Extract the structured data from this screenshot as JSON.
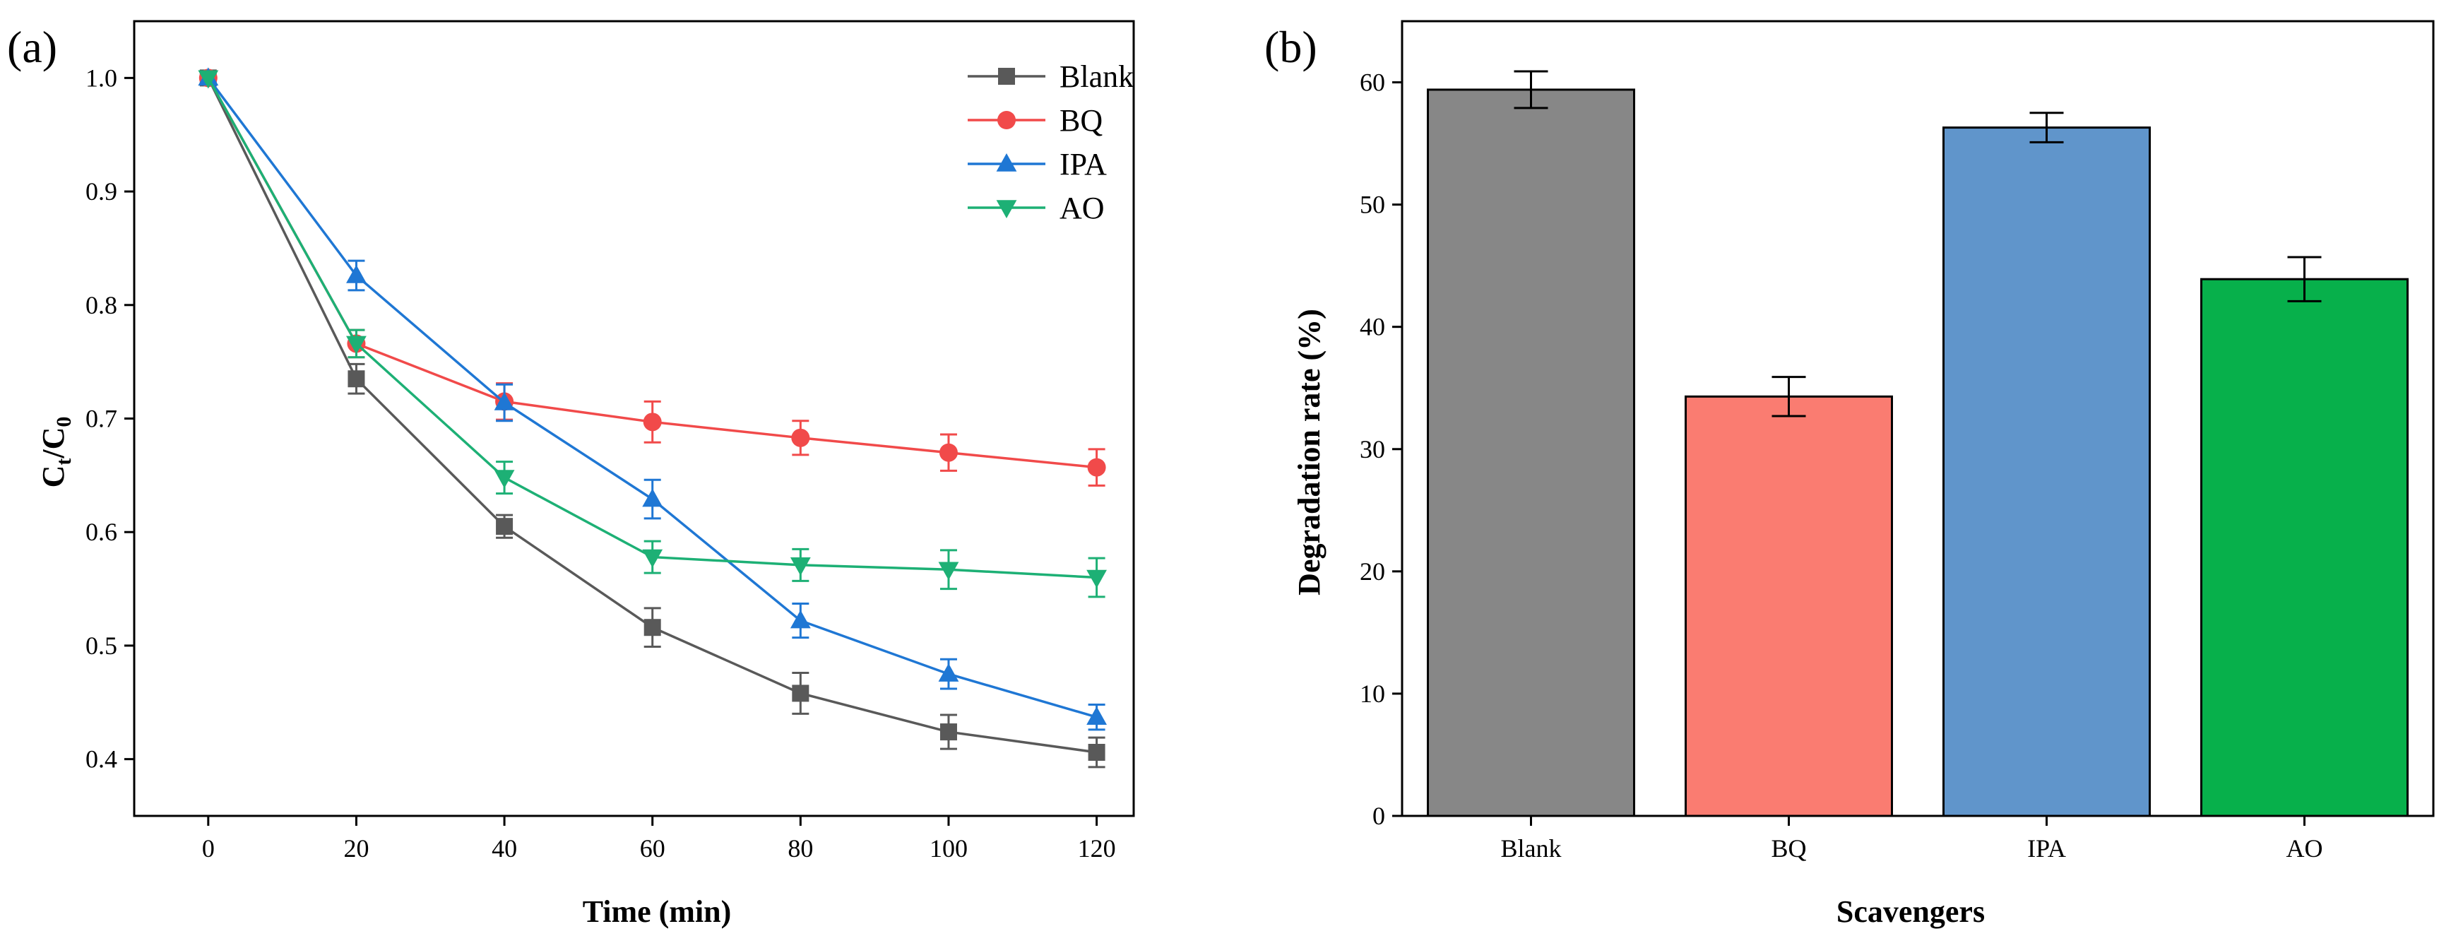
{
  "panels": {
    "a_label": "(a)",
    "b_label": "(b)"
  },
  "chart_data": [
    {
      "type": "line",
      "panel": "a",
      "xlabel": "Time (min)",
      "ylabel": {
        "base": "C",
        "sub1": "t",
        "slash": "/C",
        "sub2": "0"
      },
      "x": [
        0,
        20,
        40,
        60,
        80,
        100,
        120
      ],
      "xticks": [
        "0",
        "20",
        "40",
        "60",
        "80",
        "100",
        "120"
      ],
      "xlim": [
        -10,
        125
      ],
      "ylim": [
        0.35,
        1.05
      ],
      "yticks": [
        "0.4",
        "0.5",
        "0.6",
        "0.7",
        "0.8",
        "0.9",
        "1.0"
      ],
      "legend_position": "top-right",
      "series": [
        {
          "name": "Blank",
          "color": "#595959",
          "marker": "square",
          "values": [
            1.0,
            0.735,
            0.605,
            0.516,
            0.458,
            0.424,
            0.406
          ],
          "errors": [
            0.0,
            0.013,
            0.01,
            0.017,
            0.018,
            0.015,
            0.013
          ]
        },
        {
          "name": "BQ",
          "color": "#f14a4a",
          "marker": "circle",
          "values": [
            1.0,
            0.766,
            0.715,
            0.697,
            0.683,
            0.67,
            0.657
          ],
          "errors": [
            0.0,
            0.012,
            0.016,
            0.018,
            0.015,
            0.016,
            0.016
          ]
        },
        {
          "name": "IPA",
          "color": "#1f77d4",
          "marker": "triangle-up",
          "values": [
            1.0,
            0.826,
            0.714,
            0.629,
            0.522,
            0.475,
            0.437
          ],
          "errors": [
            0.0,
            0.013,
            0.016,
            0.017,
            0.015,
            0.013,
            0.011
          ]
        },
        {
          "name": "AO",
          "color": "#1db075",
          "marker": "triangle-down",
          "values": [
            1.0,
            0.766,
            0.648,
            0.578,
            0.571,
            0.567,
            0.56
          ],
          "errors": [
            0.0,
            0.012,
            0.014,
            0.014,
            0.014,
            0.017,
            0.017
          ]
        }
      ]
    },
    {
      "type": "bar",
      "panel": "b",
      "xlabel": "Scavengers",
      "ylabel": "Degradation rate (%)",
      "categories": [
        "Blank",
        "BQ",
        "IPA",
        "AO"
      ],
      "values": [
        59.4,
        34.3,
        56.3,
        43.9
      ],
      "errors": [
        1.5,
        1.6,
        1.2,
        1.8
      ],
      "colors": [
        "#878787",
        "#fa7c71",
        "#6095cb",
        "#07b04b"
      ],
      "ylim": [
        0,
        65
      ],
      "yticks": [
        "0",
        "10",
        "20",
        "30",
        "40",
        "50",
        "60"
      ]
    }
  ]
}
